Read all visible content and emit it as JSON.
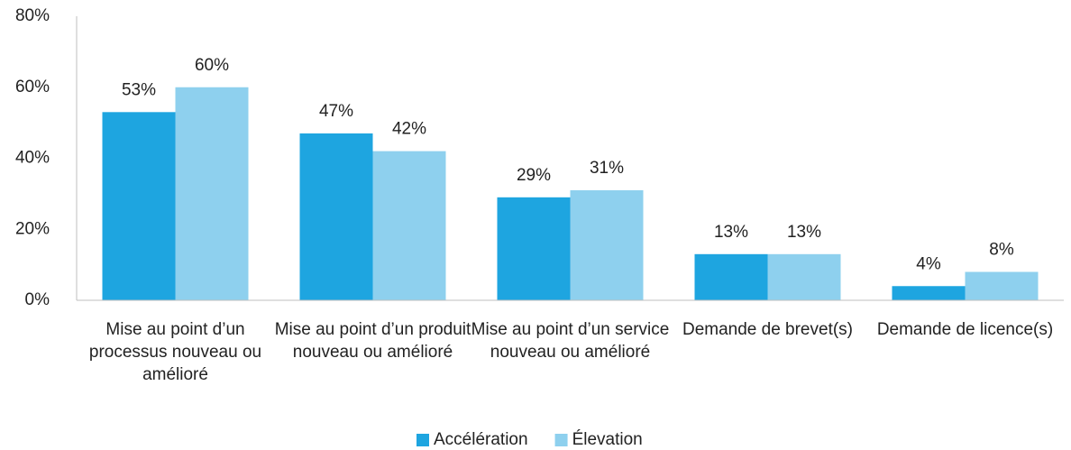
{
  "chart_data": {
    "type": "bar",
    "categories": [
      "Mise au point d’un processus nouveau ou amélioré",
      "Mise au point d’un produit nouveau ou amélioré",
      "Mise au point d’un service nouveau ou amélioré",
      "Demande de brevet(s)",
      "Demande de licence(s)"
    ],
    "series": [
      {
        "name": "Accélération",
        "color": "#1ea5e0",
        "values": [
          53,
          47,
          29,
          13,
          4
        ],
        "value_labels": [
          "53%",
          "47%",
          "29%",
          "13%",
          "4%"
        ]
      },
      {
        "name": "Élevation",
        "color": "#8ed0ee",
        "values": [
          60,
          42,
          31,
          13,
          8
        ],
        "value_labels": [
          "60%",
          "42%",
          "31%",
          "13%",
          "8%"
        ]
      }
    ],
    "ylim": [
      0,
      80
    ],
    "yticks": [
      {
        "value": 0,
        "label": "0%"
      },
      {
        "value": 20,
        "label": "20%"
      },
      {
        "value": 40,
        "label": "40%"
      },
      {
        "value": 60,
        "label": "60%"
      },
      {
        "value": 80,
        "label": "80%"
      }
    ],
    "grid": false,
    "legend": "bottom"
  }
}
